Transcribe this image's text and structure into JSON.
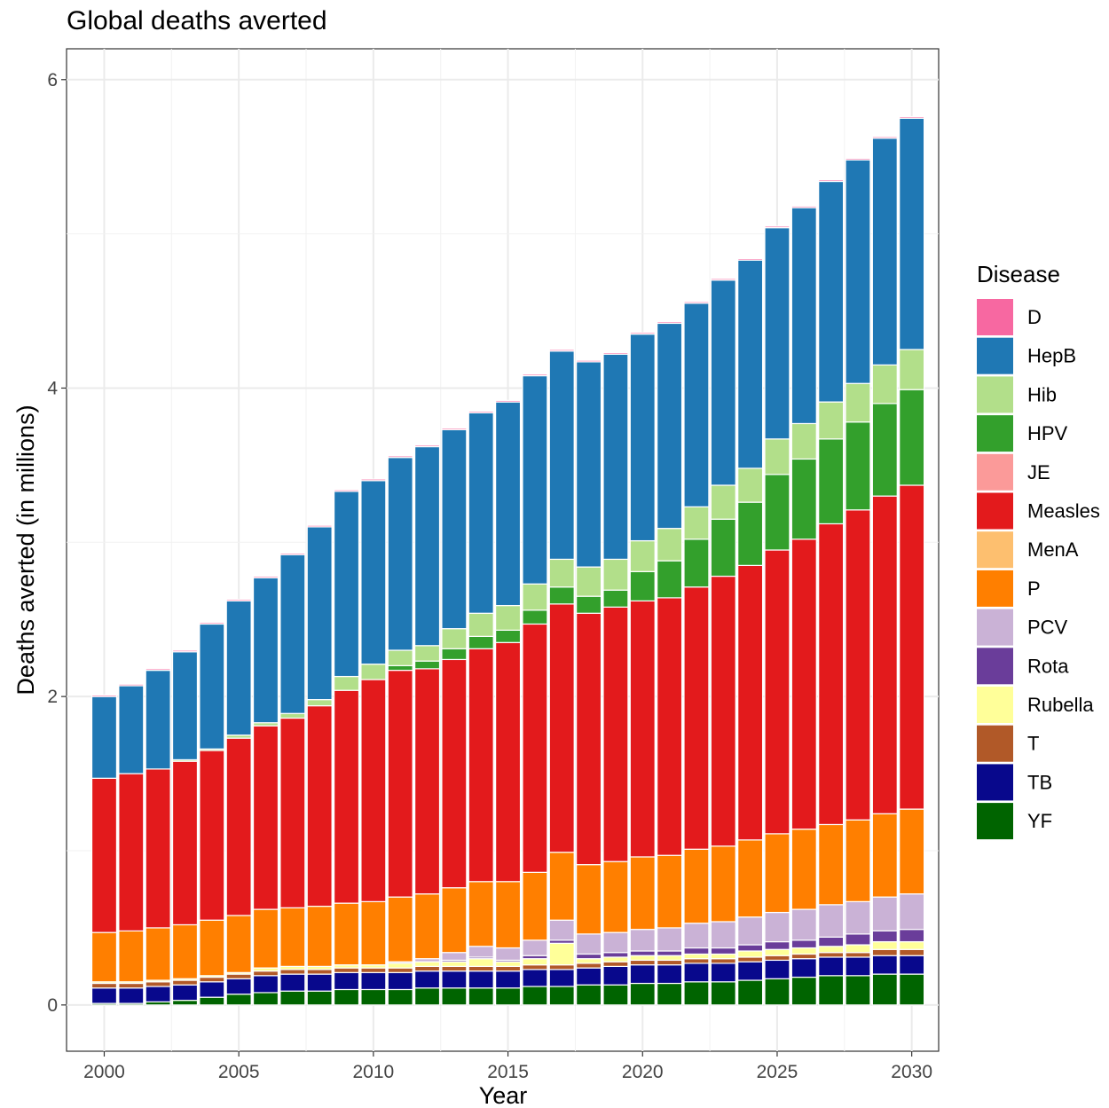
{
  "chart_data": {
    "type": "bar",
    "stacked": true,
    "title": "Global deaths averted",
    "xlabel": "Year",
    "ylabel": "Deaths averted (in millions)",
    "ylim": [
      -0.3,
      6.2
    ],
    "y_ticks": [
      0,
      2,
      4,
      6
    ],
    "x_ticks": [
      2000,
      2005,
      2010,
      2015,
      2020,
      2025,
      2030
    ],
    "grid": true,
    "legend": {
      "title": "Disease",
      "position": "right"
    },
    "categories": [
      2000,
      2001,
      2002,
      2003,
      2004,
      2005,
      2006,
      2007,
      2008,
      2009,
      2010,
      2011,
      2012,
      2013,
      2014,
      2015,
      2016,
      2017,
      2018,
      2019,
      2020,
      2021,
      2022,
      2023,
      2024,
      2025,
      2026,
      2027,
      2028,
      2029,
      2030
    ],
    "stack_order_bottom_to_top": [
      "YF",
      "TB",
      "T",
      "Rubella",
      "Rota",
      "PCV",
      "P",
      "MenA",
      "Measles",
      "JE",
      "HPV",
      "Hib",
      "HepB",
      "D"
    ],
    "series": [
      {
        "name": "D",
        "color": "#F768A1",
        "values": [
          0.01,
          0.01,
          0.01,
          0.01,
          0.01,
          0.01,
          0.01,
          0.01,
          0.01,
          0.01,
          0.01,
          0.01,
          0.01,
          0.01,
          0.01,
          0.01,
          0.01,
          0.01,
          0.01,
          0.01,
          0.01,
          0.01,
          0.01,
          0.01,
          0.01,
          0.01,
          0.01,
          0.01,
          0.01,
          0.01,
          0.01
        ]
      },
      {
        "name": "HepB",
        "color": "#1F78B4",
        "values": [
          0.53,
          0.57,
          0.64,
          0.7,
          0.81,
          0.87,
          0.94,
          1.03,
          1.12,
          1.2,
          1.19,
          1.25,
          1.29,
          1.29,
          1.3,
          1.32,
          1.35,
          1.35,
          1.33,
          1.33,
          1.34,
          1.33,
          1.32,
          1.33,
          1.35,
          1.37,
          1.4,
          1.43,
          1.45,
          1.47,
          1.5
        ]
      },
      {
        "name": "Hib",
        "color": "#B2DF8A",
        "values": [
          0.0,
          0.0,
          0.0,
          0.01,
          0.01,
          0.02,
          0.02,
          0.03,
          0.04,
          0.09,
          0.1,
          0.1,
          0.1,
          0.13,
          0.15,
          0.16,
          0.17,
          0.18,
          0.19,
          0.2,
          0.2,
          0.21,
          0.21,
          0.22,
          0.22,
          0.23,
          0.23,
          0.24,
          0.25,
          0.25,
          0.26
        ]
      },
      {
        "name": "HPV",
        "color": "#33A02C",
        "values": [
          0.0,
          0.0,
          0.0,
          0.0,
          0.0,
          0.0,
          0.0,
          0.0,
          0.0,
          0.0,
          0.0,
          0.03,
          0.05,
          0.07,
          0.08,
          0.08,
          0.09,
          0.11,
          0.11,
          0.11,
          0.19,
          0.24,
          0.31,
          0.37,
          0.41,
          0.49,
          0.52,
          0.55,
          0.57,
          0.6,
          0.62
        ]
      },
      {
        "name": "JE",
        "color": "#FB9A99",
        "values": [
          0.0,
          0.0,
          0.0,
          0.0,
          0.0,
          0.0,
          0.0,
          0.0,
          0.0,
          0.0,
          0.0,
          0.0,
          0.0,
          0.0,
          0.0,
          0.0,
          0.0,
          0.0,
          0.0,
          0.0,
          0.0,
          0.0,
          0.0,
          0.0,
          0.0,
          0.0,
          0.0,
          0.0,
          0.0,
          0.0,
          0.0
        ]
      },
      {
        "name": "Measles",
        "color": "#E31A1C",
        "values": [
          1.0,
          1.02,
          1.03,
          1.06,
          1.1,
          1.15,
          1.19,
          1.23,
          1.3,
          1.38,
          1.44,
          1.47,
          1.46,
          1.48,
          1.51,
          1.55,
          1.61,
          1.61,
          1.63,
          1.65,
          1.66,
          1.67,
          1.7,
          1.75,
          1.78,
          1.84,
          1.88,
          1.95,
          2.01,
          2.06,
          2.1
        ]
      },
      {
        "name": "MenA",
        "color": "#FDBF6F",
        "values": [
          0.0,
          0.0,
          0.0,
          0.0,
          0.0,
          0.0,
          0.0,
          0.0,
          0.0,
          0.0,
          0.0,
          0.0,
          0.0,
          0.0,
          0.0,
          0.0,
          0.0,
          0.0,
          0.0,
          0.0,
          0.0,
          0.0,
          0.0,
          0.0,
          0.0,
          0.0,
          0.0,
          0.0,
          0.0,
          0.0,
          0.0
        ]
      },
      {
        "name": "P",
        "color": "#FF7F00",
        "values": [
          0.32,
          0.33,
          0.34,
          0.35,
          0.36,
          0.37,
          0.38,
          0.38,
          0.39,
          0.4,
          0.41,
          0.42,
          0.42,
          0.42,
          0.42,
          0.43,
          0.44,
          0.44,
          0.45,
          0.46,
          0.47,
          0.47,
          0.48,
          0.49,
          0.5,
          0.51,
          0.52,
          0.52,
          0.53,
          0.54,
          0.55
        ]
      },
      {
        "name": "PCV",
        "color": "#CAB2D6",
        "values": [
          0.0,
          0.0,
          0.0,
          0.0,
          0.0,
          0.0,
          0.0,
          0.0,
          0.0,
          0.0,
          0.0,
          0.01,
          0.02,
          0.05,
          0.07,
          0.08,
          0.1,
          0.13,
          0.13,
          0.13,
          0.14,
          0.15,
          0.16,
          0.17,
          0.18,
          0.19,
          0.2,
          0.21,
          0.21,
          0.22,
          0.23
        ]
      },
      {
        "name": "Rota",
        "color": "#6A3D9A",
        "values": [
          0.0,
          0.0,
          0.0,
          0.0,
          0.0,
          0.0,
          0.0,
          0.0,
          0.0,
          0.0,
          0.0,
          0.0,
          0.0,
          0.01,
          0.01,
          0.01,
          0.02,
          0.02,
          0.03,
          0.03,
          0.03,
          0.03,
          0.04,
          0.04,
          0.04,
          0.05,
          0.05,
          0.06,
          0.07,
          0.07,
          0.08
        ]
      },
      {
        "name": "Rubella",
        "color": "#FFFF99",
        "values": [
          0.01,
          0.01,
          0.01,
          0.01,
          0.01,
          0.01,
          0.02,
          0.02,
          0.02,
          0.02,
          0.02,
          0.03,
          0.03,
          0.03,
          0.05,
          0.03,
          0.04,
          0.14,
          0.03,
          0.03,
          0.03,
          0.03,
          0.03,
          0.03,
          0.04,
          0.04,
          0.04,
          0.04,
          0.05,
          0.05,
          0.05
        ]
      },
      {
        "name": "T",
        "color": "#B15928",
        "values": [
          0.03,
          0.03,
          0.03,
          0.03,
          0.03,
          0.03,
          0.03,
          0.03,
          0.03,
          0.03,
          0.03,
          0.03,
          0.03,
          0.03,
          0.03,
          0.03,
          0.03,
          0.03,
          0.03,
          0.03,
          0.03,
          0.03,
          0.03,
          0.03,
          0.03,
          0.03,
          0.03,
          0.03,
          0.03,
          0.04,
          0.04
        ]
      },
      {
        "name": "TB",
        "color": "#08088C",
        "values": [
          0.1,
          0.1,
          0.1,
          0.1,
          0.1,
          0.1,
          0.11,
          0.11,
          0.11,
          0.11,
          0.11,
          0.11,
          0.11,
          0.11,
          0.11,
          0.11,
          0.11,
          0.11,
          0.11,
          0.12,
          0.12,
          0.12,
          0.12,
          0.12,
          0.12,
          0.12,
          0.12,
          0.12,
          0.12,
          0.12,
          0.12
        ]
      },
      {
        "name": "YF",
        "color": "#006400",
        "values": [
          0.01,
          0.01,
          0.02,
          0.03,
          0.05,
          0.07,
          0.08,
          0.09,
          0.09,
          0.1,
          0.1,
          0.1,
          0.11,
          0.11,
          0.11,
          0.11,
          0.12,
          0.12,
          0.13,
          0.13,
          0.14,
          0.14,
          0.15,
          0.15,
          0.16,
          0.17,
          0.18,
          0.19,
          0.19,
          0.2,
          0.2
        ]
      }
    ]
  }
}
